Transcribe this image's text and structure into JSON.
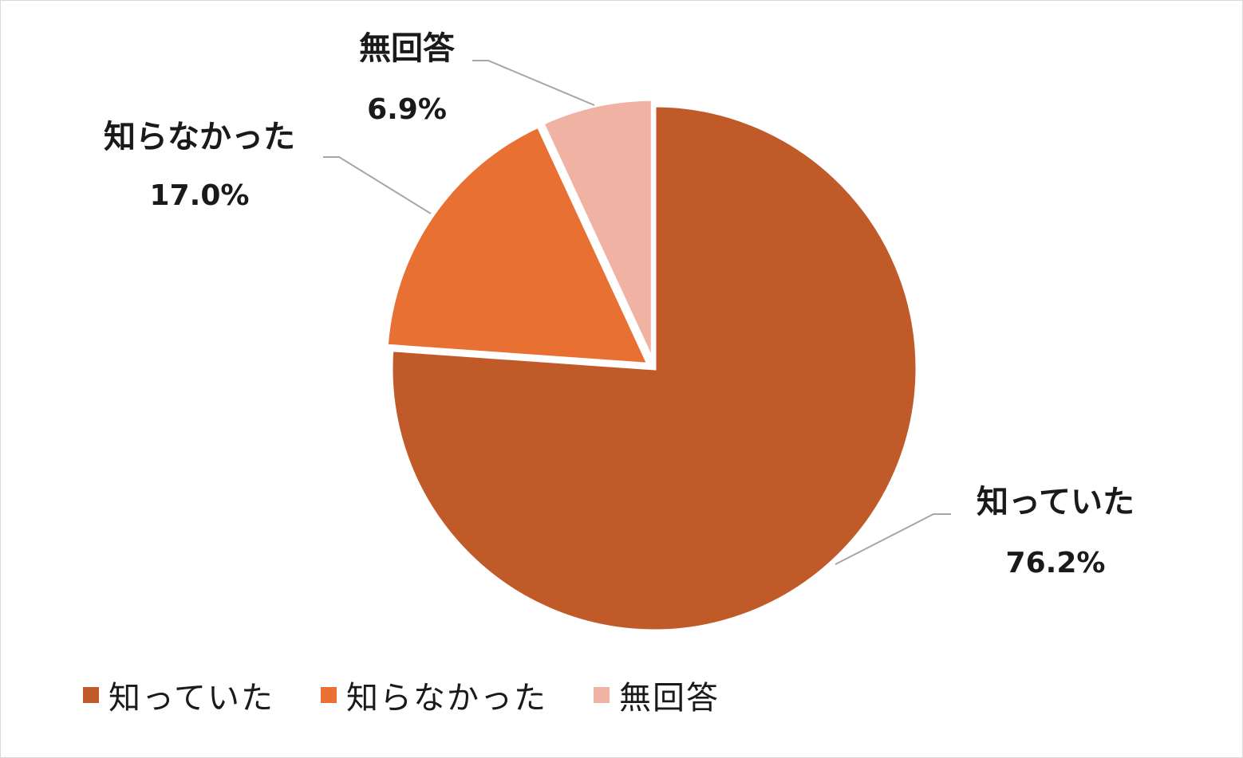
{
  "chart_data": {
    "type": "pie",
    "title": "",
    "categories": [
      "知っていた",
      "知らなかった",
      "無回答"
    ],
    "values": [
      76.2,
      17.0,
      6.9
    ],
    "value_labels": [
      "76.2%",
      "17.0%",
      "6.9%"
    ],
    "colors": [
      "#c05a28",
      "#e87033",
      "#f0b2a3"
    ],
    "start_angle": "12 o'clock",
    "direction": "clockwise",
    "legend_position": "bottom-left",
    "leader_line_color": "#a6a6a6"
  },
  "legend": {
    "items": [
      {
        "label": "知っていた",
        "color": "#c05a28"
      },
      {
        "label": "知らなかった",
        "color": "#e87033"
      },
      {
        "label": "無回答",
        "color": "#f0b2a3"
      }
    ]
  }
}
